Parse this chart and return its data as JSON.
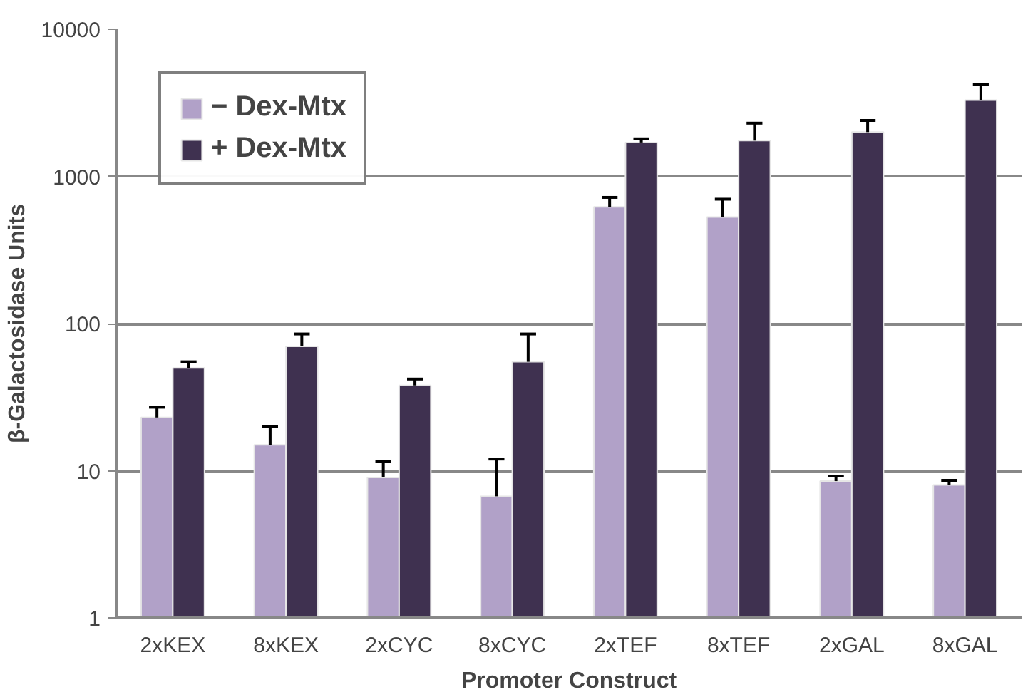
{
  "chart_data": {
    "type": "bar",
    "xlabel": "Promoter Construct",
    "ylabel": "β-Galactosidase Units",
    "categories": [
      "2xKEX",
      "8xKEX",
      "2xCYC",
      "8xCYC",
      "2xTEF",
      "8xTEF",
      "2xGAL",
      "8xGAL"
    ],
    "series": [
      {
        "name": "− Dex-Mtx",
        "color": "#b1a1c8",
        "values": [
          23,
          15,
          9,
          6.7,
          620,
          530,
          8.5,
          8
        ],
        "errors": [
          [
            23,
            27
          ],
          [
            15,
            20
          ],
          [
            9,
            11.5
          ],
          [
            6.7,
            12
          ],
          [
            620,
            720
          ],
          [
            530,
            700
          ],
          [
            8.5,
            9.2
          ],
          [
            8,
            8.6
          ]
        ]
      },
      {
        "name": "+ Dex-Mtx",
        "color": "#3f3150",
        "values": [
          50,
          70,
          38,
          55,
          1700,
          1750,
          2000,
          3300
        ],
        "errors": [
          [
            50,
            55
          ],
          [
            70,
            85
          ],
          [
            38,
            42
          ],
          [
            55,
            85
          ],
          [
            1700,
            1800
          ],
          [
            1750,
            2300
          ],
          [
            2000,
            2400
          ],
          [
            3300,
            4200
          ]
        ]
      }
    ],
    "log": true,
    "ylim": [
      1,
      10000
    ],
    "yticks": [
      1,
      10,
      100,
      1000,
      10000
    ],
    "grid": "y",
    "legend": "top left"
  }
}
